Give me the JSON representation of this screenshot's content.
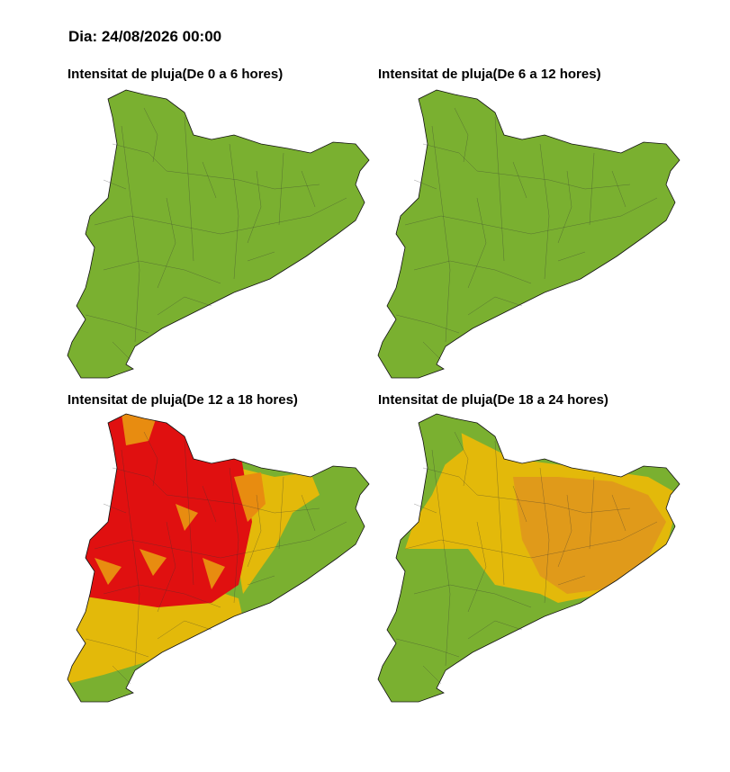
{
  "header": {
    "title": "Dia: 24/08/2026 00:00"
  },
  "panels": [
    {
      "title": "Intensitat de pluja(De 0 a 6 hores)"
    },
    {
      "title": "Intensitat de pluja(De 6 a 12 hores)"
    },
    {
      "title": "Intensitat de pluja(De 12 a 18 hores)"
    },
    {
      "title": "Intensitat de pluja(De 18 a 24 hores)"
    }
  ]
}
